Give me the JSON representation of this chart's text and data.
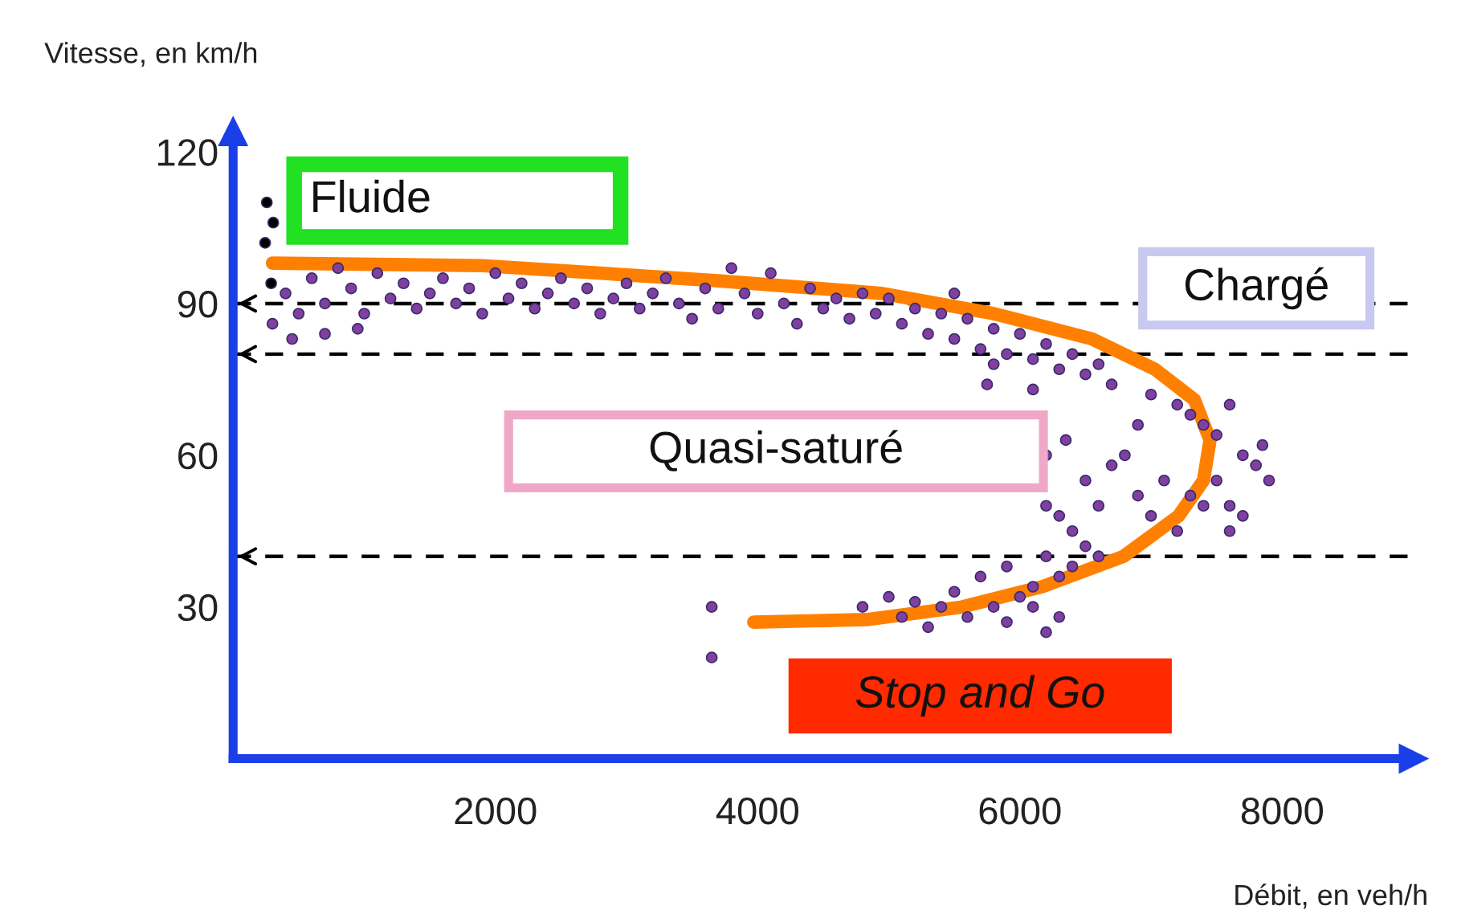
{
  "chart_data": {
    "type": "scatter",
    "xlabel": "Débit, en veh/h",
    "ylabel": "Vitesse, en km/h",
    "xlim": [
      0,
      9000
    ],
    "ylim": [
      0,
      124
    ],
    "xticks": [
      2000,
      4000,
      6000,
      8000
    ],
    "yticks": [
      30,
      60,
      90,
      120
    ],
    "grid": false,
    "marker": "circle",
    "annotations": [
      "Fluide",
      "Chargé",
      "Quasi-saturé",
      "Stop and Go"
    ],
    "ref_lines": [
      {
        "axis": "y",
        "value": 90,
        "color": "#000000",
        "line_style": "dashed"
      },
      {
        "axis": "y",
        "value": 80,
        "color": "#000000",
        "line_style": "dashed"
      },
      {
        "axis": "y",
        "value": 40,
        "color": "#000000",
        "line_style": "dashed"
      }
    ],
    "series": [
      {
        "color": "#8040a0",
        "x": [
          400,
          500,
          600,
          700,
          800,
          900,
          1000,
          1100,
          1200,
          1300,
          1400,
          1500,
          1600,
          1700,
          1800,
          1900,
          2000,
          2100,
          2200,
          2300,
          2400,
          2500,
          2600,
          2700,
          2800,
          2900,
          3000,
          3100,
          3200,
          3300,
          3400,
          3500,
          3600,
          3700,
          3800,
          3900,
          4000,
          4100,
          4200,
          4300,
          4400,
          4500,
          4600,
          4700,
          4800,
          4900,
          300,
          450,
          700,
          950,
          5000,
          5100,
          5200,
          5300,
          5400,
          5500,
          5600,
          5700,
          5800,
          5900,
          6000,
          6100,
          6200,
          6300,
          6400,
          6500,
          6600,
          6700,
          5500,
          5800,
          6100,
          5750,
          7000,
          7200,
          7300,
          7400,
          7500,
          7600,
          7700,
          7800,
          7900,
          7850,
          7500,
          7600,
          7400,
          7300,
          7100,
          7000,
          6900,
          6800,
          6700,
          6600,
          6500,
          6400,
          6300,
          6200,
          6200,
          7200,
          7600,
          6900,
          7700,
          6350,
          6500,
          6400,
          6300,
          6200,
          6100,
          6000,
          5900,
          5800,
          5700,
          5600,
          5500,
          5400,
          5300,
          5200,
          5100,
          5000,
          4800,
          6600,
          6300,
          6200,
          5900,
          6100,
          3650,
          3650
        ],
        "values": [
          92,
          88,
          95,
          90,
          97,
          93,
          88,
          96,
          91,
          94,
          89,
          92,
          95,
          90,
          93,
          88,
          96,
          91,
          94,
          89,
          92,
          95,
          90,
          93,
          88,
          91,
          94,
          89,
          92,
          95,
          90,
          87,
          93,
          89,
          97,
          92,
          88,
          96,
          90,
          86,
          93,
          89,
          91,
          87,
          92,
          88,
          86,
          83,
          84,
          85,
          91,
          86,
          89,
          84,
          88,
          83,
          87,
          81,
          85,
          80,
          84,
          79,
          82,
          77,
          80,
          76,
          78,
          74,
          92,
          78,
          73,
          74,
          72,
          70,
          68,
          66,
          64,
          70,
          60,
          58,
          55,
          62,
          55,
          50,
          50,
          52,
          55,
          48,
          52,
          60,
          58,
          50,
          55,
          45,
          48,
          60,
          50,
          45,
          45,
          66,
          48,
          63,
          42,
          38,
          36,
          40,
          34,
          32,
          38,
          30,
          36,
          28,
          33,
          30,
          26,
          31,
          28,
          32,
          30,
          40,
          28,
          25,
          27,
          30,
          30,
          20
        ]
      },
      {
        "type": "scatter",
        "color": "#000000",
        "x": [
          257,
          306,
          244,
          290
        ],
        "values": [
          110,
          106,
          102,
          94
        ]
      },
      {
        "type": "line",
        "color": "#ff8000",
        "marker": "none",
        "x": [
          300,
          1900,
          3700,
          4950,
          5800,
          6550,
          7030,
          7330,
          7450,
          7400,
          7210,
          6790,
          6170,
          5560,
          4830,
          3970
        ],
        "values": [
          98,
          97.5,
          94.5,
          92,
          88,
          83,
          77,
          71,
          63,
          55,
          48,
          40,
          34,
          30,
          27.5,
          27
        ]
      }
    ]
  }
}
